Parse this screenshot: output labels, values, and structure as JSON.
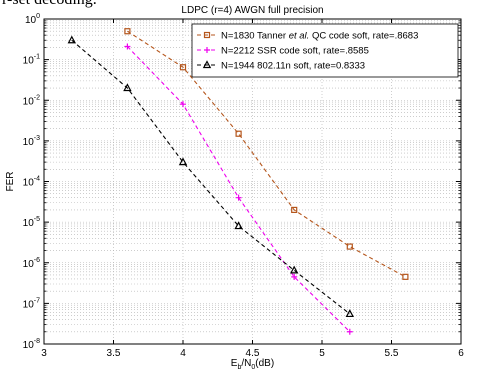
{
  "header_fragment": "r-set decoding.",
  "chart_data": {
    "type": "line",
    "title": "LDPC (r=4) AWGN full precision",
    "xlabel_main": "E",
    "xlabel_sub1": "b",
    "xlabel_mid": "/N",
    "xlabel_sub2": "0",
    "xlabel_tail": "(dB)",
    "ylabel": "FER",
    "xlim": [
      3,
      6
    ],
    "ylim_log10": [
      -8,
      0
    ],
    "y_scale": "log",
    "grid": true,
    "legend_position": "top-right",
    "x_tick_labels": [
      "3",
      "3.5",
      "4",
      "4.5",
      "5",
      "5.5",
      "6"
    ],
    "y_tick_labels": [
      {
        "base": "10",
        "exp": "0"
      },
      {
        "base": "10",
        "exp": "-1"
      },
      {
        "base": "10",
        "exp": "-2"
      },
      {
        "base": "10",
        "exp": "-3"
      },
      {
        "base": "10",
        "exp": "-4"
      },
      {
        "base": "10",
        "exp": "-5"
      },
      {
        "base": "10",
        "exp": "-6"
      },
      {
        "base": "10",
        "exp": "-7"
      },
      {
        "base": "10",
        "exp": "-8"
      }
    ],
    "series": [
      {
        "name_parts": [
          "N=1830 Tanner ",
          "et al.",
          " QC code soft, rate=.8683"
        ],
        "color": "#b5561c",
        "marker": "square",
        "x": [
          3.6,
          4.0,
          4.4,
          4.8,
          5.2,
          5.6
        ],
        "y": [
          0.5,
          0.065,
          0.0015,
          2e-05,
          2.5e-06,
          4.5e-07
        ]
      },
      {
        "name_parts": [
          "N=2212 SSR code soft, rate=.8585"
        ],
        "color": "#ee00ee",
        "marker": "plus",
        "x": [
          3.6,
          4.0,
          4.4,
          4.8,
          5.2
        ],
        "y": [
          0.21,
          0.008,
          4e-05,
          4.5e-07,
          2e-08
        ]
      },
      {
        "name_parts": [
          "N=1944 802.11n soft, rate=0.8333"
        ],
        "color": "#000000",
        "marker": "triangle",
        "x": [
          3.2,
          3.6,
          4.0,
          4.4,
          4.8,
          5.2
        ],
        "y": [
          0.3,
          0.02,
          0.0003,
          8e-06,
          6.5e-07,
          5.5e-08
        ]
      }
    ]
  }
}
